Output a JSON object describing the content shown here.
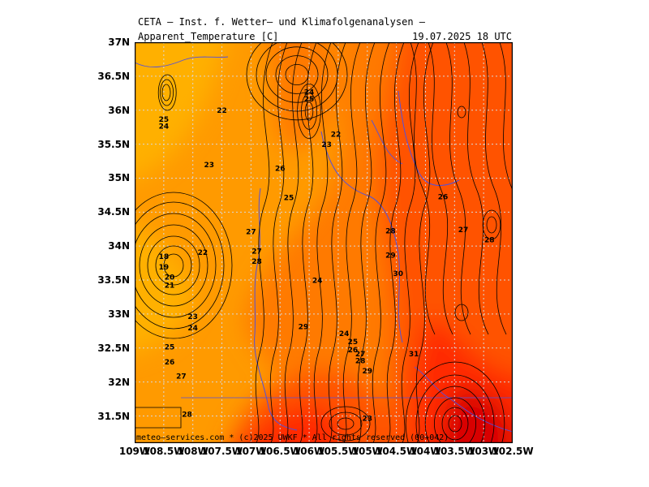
{
  "header": {
    "title": "CETA — Inst. f. Wetter— und Klimafolgenanalysen —",
    "subtitle_left": "Apparent_Temperature [C]",
    "subtitle_right": "19.07.2025 18 UTC"
  },
  "footer": "meteo—services.com * (c)2025 UWKF * All rights reserved (00+042)",
  "axes": {
    "y_ticks": [
      "37N",
      "36.5N",
      "36N",
      "35.5N",
      "35N",
      "34.5N",
      "34N",
      "33.5N",
      "33N",
      "32.5N",
      "32N",
      "31.5N"
    ],
    "x_ticks": [
      "109W",
      "108.5W",
      "108W",
      "107.5W",
      "107W",
      "106.5W",
      "106W",
      "105.5W",
      "105W",
      "104.5W",
      "104W",
      "103.5W",
      "103W",
      "102.5W"
    ]
  },
  "colors": {
    "c20_22": "#ffb000",
    "c22_25": "#ff9a00",
    "c25_28": "#ff7a00",
    "c28_31": "#ff5200",
    "c31_34": "#ff2a00",
    "c34_plus": "#d80000",
    "contour": "#000000",
    "border": "#5050e0",
    "grid": "#d8d8d8"
  },
  "contour_labels": [
    {
      "text": "25",
      "lon": -108.5,
      "lat": 35.87
    },
    {
      "text": "24",
      "lon": -108.5,
      "lat": 35.77
    },
    {
      "text": "22",
      "lon": -107.5,
      "lat": 36.0
    },
    {
      "text": "23",
      "lon": -107.72,
      "lat": 35.2
    },
    {
      "text": "18",
      "lon": -108.5,
      "lat": 33.85
    },
    {
      "text": "19",
      "lon": -108.5,
      "lat": 33.7
    },
    {
      "text": "20",
      "lon": -108.4,
      "lat": 33.55
    },
    {
      "text": "21",
      "lon": -108.4,
      "lat": 33.43
    },
    {
      "text": "22",
      "lon": -107.83,
      "lat": 33.91
    },
    {
      "text": "23",
      "lon": -108.0,
      "lat": 32.97
    },
    {
      "text": "24",
      "lon": -108.0,
      "lat": 32.8
    },
    {
      "text": "25",
      "lon": -108.4,
      "lat": 32.52
    },
    {
      "text": "26",
      "lon": -108.4,
      "lat": 32.3
    },
    {
      "text": "27",
      "lon": -108.2,
      "lat": 32.09
    },
    {
      "text": "28",
      "lon": -108.1,
      "lat": 31.53
    },
    {
      "text": "27",
      "lon": -107.0,
      "lat": 34.22
    },
    {
      "text": "27",
      "lon": -106.9,
      "lat": 33.93
    },
    {
      "text": "28",
      "lon": -106.9,
      "lat": 33.78
    },
    {
      "text": "26",
      "lon": -106.5,
      "lat": 35.15
    },
    {
      "text": "25",
      "lon": -106.35,
      "lat": 34.72
    },
    {
      "text": "24",
      "lon": -106.0,
      "lat": 36.27
    },
    {
      "text": "25",
      "lon": -106.0,
      "lat": 36.17
    },
    {
      "text": "22",
      "lon": -105.54,
      "lat": 35.65
    },
    {
      "text": "23",
      "lon": -105.7,
      "lat": 35.5
    },
    {
      "text": "24",
      "lon": -105.86,
      "lat": 33.5
    },
    {
      "text": "29",
      "lon": -106.1,
      "lat": 32.82
    },
    {
      "text": "24",
      "lon": -105.4,
      "lat": 32.72
    },
    {
      "text": "25",
      "lon": -105.25,
      "lat": 32.6
    },
    {
      "text": "26",
      "lon": -105.25,
      "lat": 32.48
    },
    {
      "text": "27",
      "lon": -105.12,
      "lat": 32.42
    },
    {
      "text": "28",
      "lon": -105.12,
      "lat": 32.32
    },
    {
      "text": "29",
      "lon": -105.0,
      "lat": 32.17
    },
    {
      "text": "23",
      "lon": -105.0,
      "lat": 31.47
    },
    {
      "text": "28",
      "lon": -104.6,
      "lat": 34.23
    },
    {
      "text": "29",
      "lon": -104.6,
      "lat": 33.87
    },
    {
      "text": "30",
      "lon": -104.47,
      "lat": 33.6
    },
    {
      "text": "31",
      "lon": -104.2,
      "lat": 32.42
    },
    {
      "text": "26",
      "lon": -103.7,
      "lat": 34.73
    },
    {
      "text": "27",
      "lon": -103.35,
      "lat": 34.25
    },
    {
      "text": "28",
      "lon": -102.9,
      "lat": 34.1
    }
  ]
}
